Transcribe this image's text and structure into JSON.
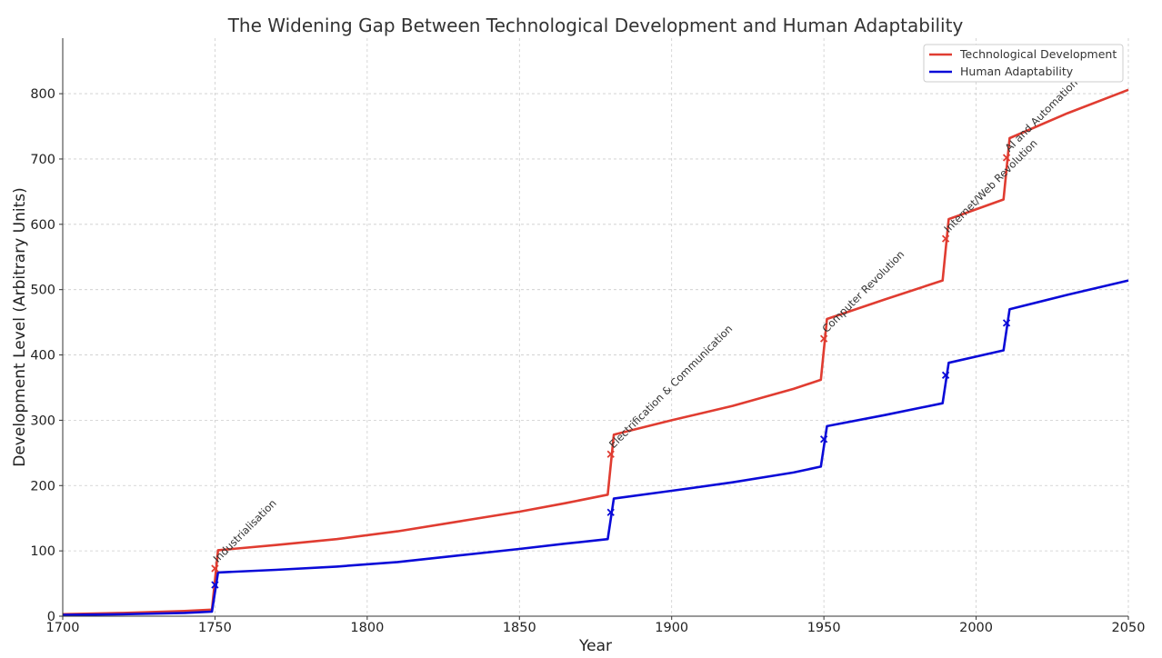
{
  "chart_data": {
    "type": "line",
    "title": "The Widening Gap Between Technological Development and Human Adaptability",
    "xlabel": "Year",
    "ylabel": "Development Level (Arbitrary Units)",
    "xlim": [
      1700,
      2050
    ],
    "ylim": [
      0,
      885
    ],
    "xticks": [
      1700,
      1750,
      1800,
      1850,
      1900,
      1950,
      2000,
      2050
    ],
    "yticks": [
      0,
      100,
      200,
      300,
      400,
      500,
      600,
      700,
      800
    ],
    "grid": true,
    "legend": "top-right",
    "series": [
      {
        "name": "Technological Development",
        "color": "#e03c31",
        "x": [
          1700,
          1720,
          1740,
          1749,
          1751,
          1770,
          1790,
          1810,
          1830,
          1850,
          1865,
          1879,
          1881,
          1900,
          1920,
          1940,
          1949,
          1951,
          1970,
          1989,
          1991,
          2009,
          2011,
          2030,
          2050
        ],
        "y": [
          3,
          5,
          8,
          10,
          101,
          109,
          118,
          130,
          145,
          160,
          173,
          186,
          278,
          300,
          322,
          348,
          362,
          455,
          485,
          514,
          608,
          638,
          732,
          770,
          806
        ]
      },
      {
        "name": "Human Adaptability",
        "color": "#0a0ad8",
        "x": [
          1700,
          1720,
          1740,
          1749,
          1751,
          1770,
          1790,
          1810,
          1830,
          1850,
          1865,
          1879,
          1881,
          1900,
          1920,
          1940,
          1949,
          1951,
          1970,
          1989,
          1991,
          2009,
          2011,
          2030,
          2050
        ],
        "y": [
          2,
          3,
          5,
          7,
          67,
          71,
          76,
          83,
          93,
          103,
          111,
          118,
          180,
          192,
          205,
          220,
          229,
          291,
          308,
          326,
          388,
          407,
          470,
          492,
          514
        ]
      }
    ],
    "events": [
      {
        "year": 1750,
        "label": "Industrialisation",
        "tech": 73,
        "human": 48
      },
      {
        "year": 1880,
        "label": "Electrification & Communication",
        "tech": 248,
        "human": 159
      },
      {
        "year": 1950,
        "label": "Computer Revolution",
        "tech": 425,
        "human": 271
      },
      {
        "year": 1990,
        "label": "Internet/Web Revolution",
        "tech": 578,
        "human": 369
      },
      {
        "year": 2010,
        "label": "AI and Automation",
        "tech": 702,
        "human": 449
      }
    ]
  }
}
